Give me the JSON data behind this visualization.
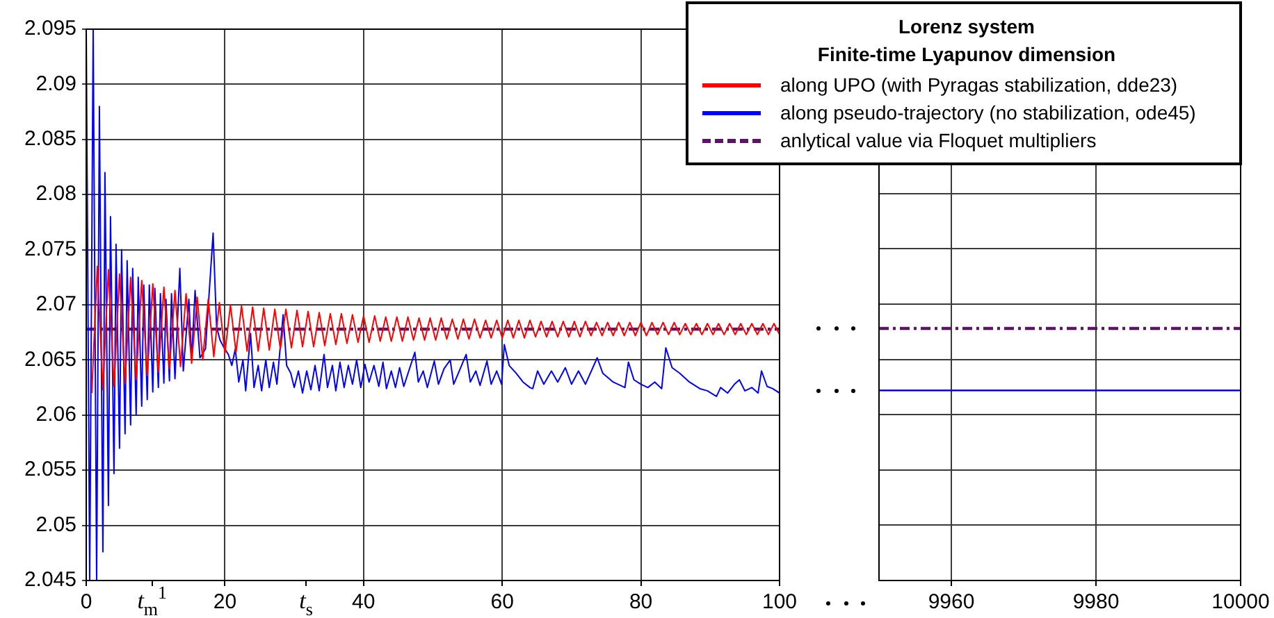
{
  "chart_data": [
    {
      "type": "line",
      "legend_title": "Lorenz system\nFinite-time Lyapunov dimension",
      "legend": "top right",
      "grid": true,
      "marker": "none",
      "xlim": [
        0,
        100
      ],
      "xticks": [
        0,
        {
          "value": 9.5,
          "label": null
        },
        20,
        {
          "value": 31.7,
          "label": null
        },
        40,
        60,
        80,
        100
      ],
      "annotations": [
        "t$_{m}$$^{1}$",
        "t$_{s}$"
      ],
      "ylim": [
        2.045,
        2.095
      ],
      "yticks": [
        2.045,
        2.05,
        2.055,
        2.06,
        2.065,
        2.07,
        2.075,
        2.08,
        2.085,
        2.09,
        2.095
      ],
      "series": [
        {
          "name": "along UPO (with Pyragas stabilization, dde23)",
          "color": "#ff0000",
          "line_style": "solid",
          "x": [
            0.8,
            1.6,
            2.4,
            3.2,
            4,
            4.8,
            5.6,
            6.4,
            7.2,
            8,
            8.8,
            9.6,
            10.4,
            11.2,
            12,
            12.8,
            13.6,
            14.4,
            15.2,
            16,
            16.8,
            17.6,
            18.4,
            19.2,
            20,
            20.8,
            21.6,
            22.4,
            23.2,
            24,
            24.8,
            25.6,
            26.4,
            27.2,
            28,
            28.8,
            29.6,
            30.4,
            31.2,
            32,
            32.8,
            33.6,
            34.4,
            35.2,
            36,
            36.8,
            37.6,
            38.4,
            39.2,
            40,
            40.8,
            41.6,
            42.4,
            43.2,
            44,
            44.8,
            45.6,
            46.4,
            47.2,
            48,
            48.8,
            49.6,
            50.4,
            51.2,
            52,
            52.8,
            53.6,
            54.4,
            55.2,
            56,
            56.8,
            57.6,
            58.4,
            59.2,
            60,
            60.8,
            61.6,
            62.4,
            63.2,
            64,
            64.8,
            65.6,
            66.4,
            67.2,
            68,
            68.8,
            69.6,
            70.4,
            71.2,
            72,
            72.8,
            73.6,
            74.4,
            75.2,
            76,
            76.8,
            77.6,
            78.4,
            79.2,
            80,
            80.8,
            81.6,
            82.4,
            83.2,
            84,
            84.8,
            85.6,
            86.4,
            87.2,
            88,
            88.8,
            89.6,
            90.4,
            91.2,
            92,
            92.8,
            93.6,
            94.4,
            95.2,
            96,
            96.8,
            97.6,
            98.4,
            99.2,
            100
          ],
          "values": [
            2.062,
            2.0735,
            2.0623,
            2.0732,
            2.0626,
            2.0728,
            2.0629,
            2.0725,
            2.0632,
            2.0722,
            2.0636,
            2.0719,
            2.0639,
            2.0716,
            2.0642,
            2.0713,
            2.0644,
            2.071,
            2.0647,
            2.0707,
            2.065,
            2.0705,
            2.0653,
            2.0702,
            2.0656,
            2.07,
            2.0657,
            2.0699,
            2.0658,
            2.0698,
            2.0658,
            2.0697,
            2.0659,
            2.0696,
            2.066,
            2.0696,
            2.0661,
            2.0695,
            2.0662,
            2.0694,
            2.0662,
            2.0693,
            2.0663,
            2.0692,
            2.0664,
            2.0692,
            2.0665,
            2.0691,
            2.0666,
            2.069,
            2.0666,
            2.069,
            2.0667,
            2.0689,
            2.0667,
            2.0689,
            2.0667,
            2.0689,
            2.0668,
            2.0688,
            2.0668,
            2.0688,
            2.0668,
            2.0688,
            2.0669,
            2.0687,
            2.0669,
            2.0687,
            2.0669,
            2.0687,
            2.067,
            2.0686,
            2.067,
            2.0686,
            2.067,
            2.0686,
            2.067,
            2.0686,
            2.067,
            2.0686,
            2.0671,
            2.0685,
            2.0671,
            2.0685,
            2.0671,
            2.0685,
            2.0671,
            2.0685,
            2.0671,
            2.0685,
            2.0672,
            2.0684,
            2.0672,
            2.0684,
            2.0672,
            2.0684,
            2.0672,
            2.0684,
            2.0672,
            2.0684,
            2.0672,
            2.0684,
            2.0673,
            2.0684,
            2.0673,
            2.0684,
            2.0673,
            2.0683,
            2.0673,
            2.0683,
            2.0673,
            2.0683,
            2.0673,
            2.0683,
            2.0673,
            2.0683,
            2.0673,
            2.0683,
            2.0673,
            2.0683,
            2.0673,
            2.0683,
            2.0673,
            2.0683,
            2.0673
          ]
        },
        {
          "name": "along pseudo-trajectory (no stabilization, ode45)",
          "color": "#0000ff",
          "line_style": "solid",
          "x": [
            0,
            0.5,
            1.0,
            1.5,
            1.9,
            2.4,
            2.7,
            3.2,
            3.5,
            4.0,
            4.3,
            4.8,
            5.1,
            5.6,
            5.9,
            6.4,
            6.7,
            7.2,
            7.5,
            8.0,
            8.3,
            8.8,
            9.1,
            9.6,
            9.9,
            10.4,
            10.7,
            11.2,
            11.5,
            12.0,
            12.3,
            12.8,
            13.5,
            14.0,
            14.8,
            15.2,
            15.7,
            16.4,
            17.2,
            18.3,
            18.8,
            19.3,
            19.8,
            20.5,
            21.0,
            21.5,
            22.0,
            22.6,
            23.0,
            23.7,
            24.2,
            24.8,
            25.3,
            25.9,
            26.4,
            27.0,
            27.5,
            28.4,
            28.9,
            29.5,
            30.0,
            30.6,
            31.2,
            31.8,
            32.4,
            33.0,
            33.6,
            34.3,
            34.8,
            35.5,
            36.0,
            36.6,
            37.2,
            37.8,
            38.4,
            39.0,
            39.6,
            40.2,
            40.8,
            41.5,
            42.2,
            42.8,
            43.3,
            44.0,
            44.6,
            45.2,
            45.8,
            47.4,
            47.9,
            48.6,
            49.2,
            50.2,
            50.8,
            51.6,
            52.5,
            53.0,
            53.8,
            54.8,
            55.4,
            56.2,
            56.8,
            57.8,
            58.4,
            59.2,
            59.9,
            60.3,
            61.0,
            62.0,
            63.0,
            64.0,
            64.4,
            65.1,
            66.0,
            67.1,
            68.0,
            69.1,
            70.0,
            71.0,
            72.0,
            73.7,
            74.5,
            76.0,
            77.7,
            78.2,
            79.0,
            80.0,
            81.0,
            82.0,
            83.0,
            83.6,
            84.5,
            85.6,
            87.0,
            88.5,
            89.6,
            90.9,
            91.5,
            92.5,
            93.5,
            94.2,
            95.0,
            96.0,
            96.9,
            97.4,
            98.2,
            99.0,
            100
          ],
          "values": [
            2.095,
            2.045,
            2.095,
            2.045,
            2.088,
            2.0476,
            2.082,
            2.0518,
            2.078,
            2.0547,
            2.0755,
            2.057,
            2.075,
            2.0583,
            2.074,
            2.0591,
            2.0733,
            2.06,
            2.0725,
            2.0608,
            2.0718,
            2.0614,
            2.0718,
            2.0621,
            2.0715,
            2.0625,
            2.071,
            2.0629,
            2.0705,
            2.0631,
            2.071,
            2.0633,
            2.0733,
            2.064,
            2.0705,
            2.065,
            2.0713,
            2.0652,
            2.066,
            2.0765,
            2.068,
            2.0668,
            2.0662,
            2.0655,
            2.0645,
            2.066,
            2.063,
            2.065,
            2.0622,
            2.0674,
            2.0625,
            2.0645,
            2.0622,
            2.065,
            2.0625,
            2.0648,
            2.0628,
            2.0691,
            2.0645,
            2.0638,
            2.0625,
            2.064,
            2.062,
            2.064,
            2.0623,
            2.0645,
            2.0622,
            2.0655,
            2.0625,
            2.0645,
            2.0622,
            2.0648,
            2.0625,
            2.0645,
            2.0628,
            2.065,
            2.0625,
            2.0646,
            2.063,
            2.0645,
            2.0626,
            2.0648,
            2.0624,
            2.064,
            2.0625,
            2.0643,
            2.0626,
            2.0657,
            2.063,
            2.064,
            2.0625,
            2.0649,
            2.0628,
            2.0642,
            2.065,
            2.0628,
            2.064,
            2.0655,
            2.063,
            2.064,
            2.0627,
            2.0649,
            2.0628,
            2.064,
            2.0628,
            2.0664,
            2.0645,
            2.0638,
            2.063,
            2.0625,
            2.0624,
            2.064,
            2.0628,
            2.064,
            2.063,
            2.0643,
            2.0628,
            2.064,
            2.0628,
            2.0652,
            2.0638,
            2.063,
            2.0625,
            2.0648,
            2.0632,
            2.0628,
            2.0625,
            2.063,
            2.0624,
            2.0661,
            2.0643,
            2.0638,
            2.063,
            2.0624,
            2.0622,
            2.0617,
            2.0625,
            2.062,
            2.0628,
            2.0632,
            2.0622,
            2.0625,
            2.062,
            2.064,
            2.0626,
            2.0624,
            2.062
          ]
        },
        {
          "name": "anlytical value via Floquet multipliers",
          "color": "#5c1565",
          "line_style": "dashed",
          "x": [
            0,
            100
          ],
          "values": [
            2.0678,
            2.0678
          ]
        }
      ]
    },
    {
      "type": "line",
      "grid": true,
      "marker": "none",
      "tick_labels": "x",
      "xlim": [
        9950,
        10000
      ],
      "xticks": [
        9960,
        9980,
        10000
      ],
      "ylim": [
        2.045,
        2.095
      ],
      "yticks": [
        2.045,
        2.05,
        2.055,
        2.06,
        2.065,
        2.07,
        2.075,
        2.08,
        2.085,
        2.09,
        2.095
      ],
      "series": [
        {
          "color": "#0000ff",
          "line_style": "solid",
          "x": [
            9950,
            10000
          ],
          "values": [
            2.0622,
            2.0622
          ]
        },
        {
          "color": "#5c1565",
          "line_style": "dashed",
          "x": [
            9950,
            10000
          ],
          "values": [
            2.0678,
            2.0678
          ]
        }
      ]
    }
  ]
}
